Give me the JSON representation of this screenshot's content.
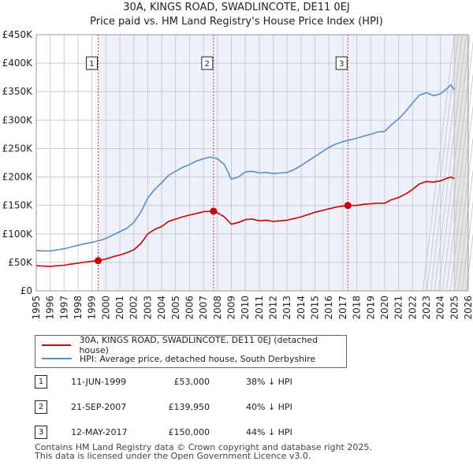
{
  "title_line1": "30A, KINGS ROAD, SWADLINCOTE, DE11 0EJ",
  "title_line2": "Price paid vs. HM Land Registry's House Price Index (HPI)",
  "chart_data": {
    "type": "line",
    "ylim": [
      0,
      450000
    ],
    "xlim": [
      1995,
      2026
    ],
    "y_ticks": [
      0,
      50000,
      100000,
      150000,
      200000,
      250000,
      300000,
      350000,
      400000,
      450000
    ],
    "y_tick_labels": [
      "£0",
      "£50K",
      "£100K",
      "£150K",
      "£200K",
      "£250K",
      "£300K",
      "£350K",
      "£400K",
      "£450K"
    ],
    "x_ticks": [
      1995,
      1996,
      1997,
      1998,
      1999,
      2000,
      2001,
      2002,
      2003,
      2004,
      2005,
      2006,
      2007,
      2008,
      2009,
      2010,
      2011,
      2012,
      2013,
      2014,
      2015,
      2016,
      2017,
      2018,
      2019,
      2020,
      2021,
      2022,
      2023,
      2024,
      2025,
      2026
    ],
    "future_shade_start": 2025.0,
    "series": [
      {
        "name": "30A, KINGS ROAD, SWADLINCOTE, DE11 0EJ (detached house)",
        "color": "#cc0000",
        "points": [
          [
            1995.0,
            44000
          ],
          [
            1995.5,
            43500
          ],
          [
            1996.0,
            43000
          ],
          [
            1996.5,
            44000
          ],
          [
            1997.0,
            45000
          ],
          [
            1997.5,
            47000
          ],
          [
            1998.0,
            48500
          ],
          [
            1998.5,
            50500
          ],
          [
            1999.0,
            52000
          ],
          [
            1999.44,
            53000
          ],
          [
            2000.0,
            56000
          ],
          [
            2000.5,
            60000
          ],
          [
            2001.0,
            63000
          ],
          [
            2001.5,
            67000
          ],
          [
            2002.0,
            72000
          ],
          [
            2002.5,
            83000
          ],
          [
            2003.0,
            100000
          ],
          [
            2003.5,
            108000
          ],
          [
            2004.0,
            113000
          ],
          [
            2004.5,
            122000
          ],
          [
            2005.0,
            126000
          ],
          [
            2005.5,
            130000
          ],
          [
            2006.0,
            133000
          ],
          [
            2006.5,
            136000
          ],
          [
            2007.0,
            139000
          ],
          [
            2007.72,
            139950
          ],
          [
            2008.0,
            137000
          ],
          [
            2008.5,
            130000
          ],
          [
            2009.0,
            117000
          ],
          [
            2009.5,
            120000
          ],
          [
            2010.0,
            125000
          ],
          [
            2010.5,
            126000
          ],
          [
            2011.0,
            123000
          ],
          [
            2011.5,
            124000
          ],
          [
            2012.0,
            122000
          ],
          [
            2012.5,
            123000
          ],
          [
            2013.0,
            124000
          ],
          [
            2013.5,
            127000
          ],
          [
            2014.0,
            130000
          ],
          [
            2014.5,
            134000
          ],
          [
            2015.0,
            138000
          ],
          [
            2015.5,
            141000
          ],
          [
            2016.0,
            144000
          ],
          [
            2016.5,
            147000
          ],
          [
            2017.0,
            149000
          ],
          [
            2017.36,
            150000
          ],
          [
            2018.0,
            150000
          ],
          [
            2018.5,
            152000
          ],
          [
            2019.0,
            153000
          ],
          [
            2019.5,
            154000
          ],
          [
            2020.0,
            154000
          ],
          [
            2020.5,
            160000
          ],
          [
            2021.0,
            164000
          ],
          [
            2021.5,
            170000
          ],
          [
            2022.0,
            178000
          ],
          [
            2022.5,
            188000
          ],
          [
            2023.0,
            192000
          ],
          [
            2023.5,
            191000
          ],
          [
            2024.0,
            193000
          ],
          [
            2024.5,
            198000
          ],
          [
            2024.75,
            200000
          ],
          [
            2025.0,
            197000
          ]
        ]
      },
      {
        "name": "HPI: Average price, detached house, South Derbyshire",
        "color": "#5b8ec8",
        "points": [
          [
            1995.0,
            71000
          ],
          [
            1995.5,
            70000
          ],
          [
            1996.0,
            70000
          ],
          [
            1996.5,
            72000
          ],
          [
            1997.0,
            74000
          ],
          [
            1997.5,
            77000
          ],
          [
            1998.0,
            80000
          ],
          [
            1998.5,
            83000
          ],
          [
            1999.0,
            85000
          ],
          [
            1999.5,
            88000
          ],
          [
            2000.0,
            92000
          ],
          [
            2000.5,
            98000
          ],
          [
            2001.0,
            104000
          ],
          [
            2001.5,
            110000
          ],
          [
            2002.0,
            120000
          ],
          [
            2002.5,
            138000
          ],
          [
            2003.0,
            163000
          ],
          [
            2003.5,
            178000
          ],
          [
            2004.0,
            190000
          ],
          [
            2004.5,
            203000
          ],
          [
            2005.0,
            210000
          ],
          [
            2005.5,
            217000
          ],
          [
            2006.0,
            222000
          ],
          [
            2006.5,
            228000
          ],
          [
            2007.0,
            232000
          ],
          [
            2007.5,
            235000
          ],
          [
            2008.0,
            232000
          ],
          [
            2008.5,
            222000
          ],
          [
            2009.0,
            196000
          ],
          [
            2009.5,
            200000
          ],
          [
            2010.0,
            209000
          ],
          [
            2010.5,
            210000
          ],
          [
            2011.0,
            207000
          ],
          [
            2011.5,
            208000
          ],
          [
            2012.0,
            206000
          ],
          [
            2012.5,
            207000
          ],
          [
            2013.0,
            208000
          ],
          [
            2013.5,
            213000
          ],
          [
            2014.0,
            220000
          ],
          [
            2014.5,
            228000
          ],
          [
            2015.0,
            236000
          ],
          [
            2015.5,
            244000
          ],
          [
            2016.0,
            252000
          ],
          [
            2016.5,
            258000
          ],
          [
            2017.0,
            262000
          ],
          [
            2017.5,
            265000
          ],
          [
            2018.0,
            268000
          ],
          [
            2018.5,
            272000
          ],
          [
            2019.0,
            275000
          ],
          [
            2019.5,
            279000
          ],
          [
            2020.0,
            280000
          ],
          [
            2020.5,
            292000
          ],
          [
            2021.0,
            302000
          ],
          [
            2021.5,
            315000
          ],
          [
            2022.0,
            330000
          ],
          [
            2022.5,
            344000
          ],
          [
            2023.0,
            348000
          ],
          [
            2023.5,
            343000
          ],
          [
            2024.0,
            346000
          ],
          [
            2024.5,
            356000
          ],
          [
            2024.75,
            362000
          ],
          [
            2025.0,
            353000
          ]
        ]
      }
    ],
    "sales": [
      {
        "num": "1",
        "date": "11-JUN-1999",
        "price": "£53,000",
        "hpi": "38% ↓ HPI",
        "x": 1999.44,
        "y": 53000
      },
      {
        "num": "2",
        "date": "21-SEP-2007",
        "price": "£139,950",
        "hpi": "40% ↓ HPI",
        "x": 2007.72,
        "y": 139950
      },
      {
        "num": "3",
        "date": "12-MAY-2017",
        "price": "£150,000",
        "hpi": "44% ↓ HPI",
        "x": 2017.36,
        "y": 150000
      }
    ],
    "marker_label_value": 400000
  },
  "footer_line1": "Contains HM Land Registry data © Crown copyright and database right 2025.",
  "footer_line2": "This data is licensed under the Open Government Licence v3.0."
}
